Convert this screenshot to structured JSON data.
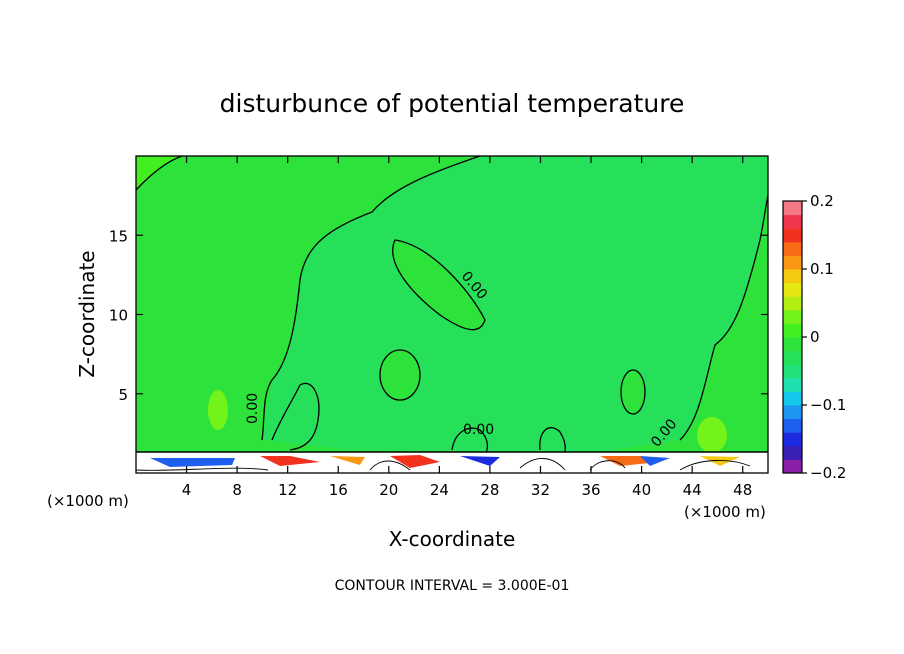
{
  "chart_data": {
    "type": "heatmap",
    "title": "disturbunce of potential temperature",
    "xlabel": "X-coordinate",
    "ylabel": "Z-coordinate",
    "x_unit": "(×1000 m)",
    "footer": "CONTOUR INTERVAL = 3.000E-01",
    "xlim": [
      0,
      50
    ],
    "ylim": [
      0,
      20
    ],
    "x_ticks": [
      4,
      8,
      12,
      16,
      20,
      24,
      28,
      32,
      36,
      40,
      44,
      48
    ],
    "y_ticks": [
      5,
      10,
      15
    ],
    "colorbar": {
      "vmin": -0.2,
      "vmax": 0.2,
      "tick_labels": [
        "0.2",
        "0.1",
        "0",
        "−0.1",
        "−0.2"
      ],
      "tick_values": [
        0.2,
        0.1,
        0,
        -0.1,
        -0.2
      ],
      "colors": [
        "#8b1fa8",
        "#3a1fb5",
        "#1c2be0",
        "#1e5ff0",
        "#1f95f2",
        "#13c8ea",
        "#1ee0b0",
        "#22e07a",
        "#27e05a",
        "#2ee23c",
        "#41f01e",
        "#74f31a",
        "#b4ef14",
        "#e5e712",
        "#f5c812",
        "#f89814",
        "#f76a16",
        "#f2321c",
        "#f0374e",
        "#f57a88"
      ]
    },
    "background_value": 0,
    "contour_labels": [
      "0.00",
      "0.00",
      "0.00",
      "0.00",
      "0.00"
    ]
  }
}
